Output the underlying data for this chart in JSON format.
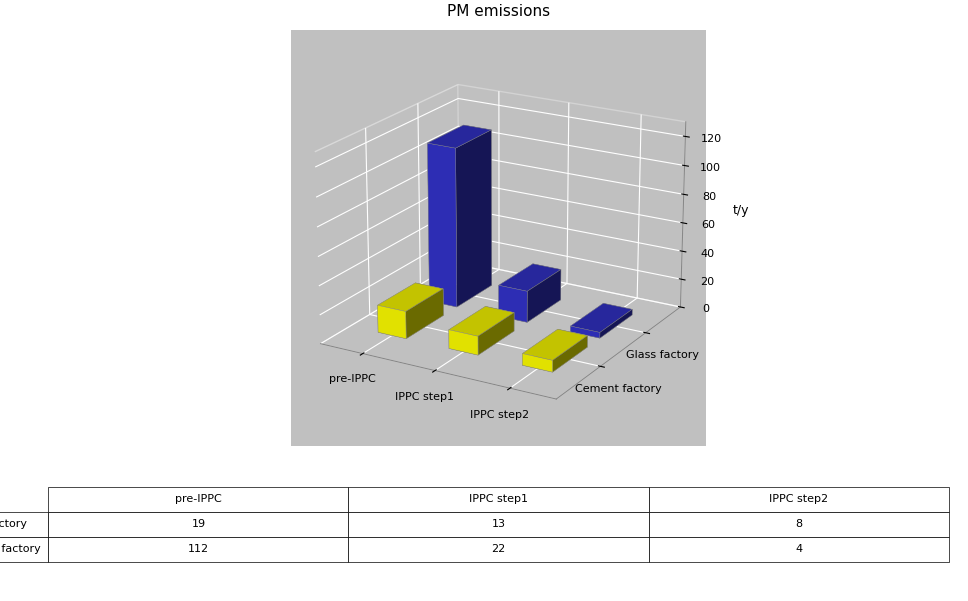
{
  "title": "PM emissions",
  "ylabel": "t/y",
  "categories": [
    "pre-IPPC",
    "IPPC step1",
    "IPPC step2"
  ],
  "series": [
    {
      "name": "Glass factory",
      "color": "#FFFF00",
      "values": [
        19,
        13,
        8
      ]
    },
    {
      "name": "Cement factory",
      "color": "#3333CC",
      "values": [
        112,
        22,
        4
      ]
    }
  ],
  "ylim": [
    0,
    130
  ],
  "yticks": [
    0,
    20,
    40,
    60,
    80,
    100,
    120
  ],
  "background_color": "#FFFFFF",
  "wall_color": "#C0C0C0",
  "floor_color": "#808080",
  "table_header_color": "#FFFFFF",
  "table_border_color": "#000000",
  "bar_width": 0.4,
  "bar_depth": 0.4
}
